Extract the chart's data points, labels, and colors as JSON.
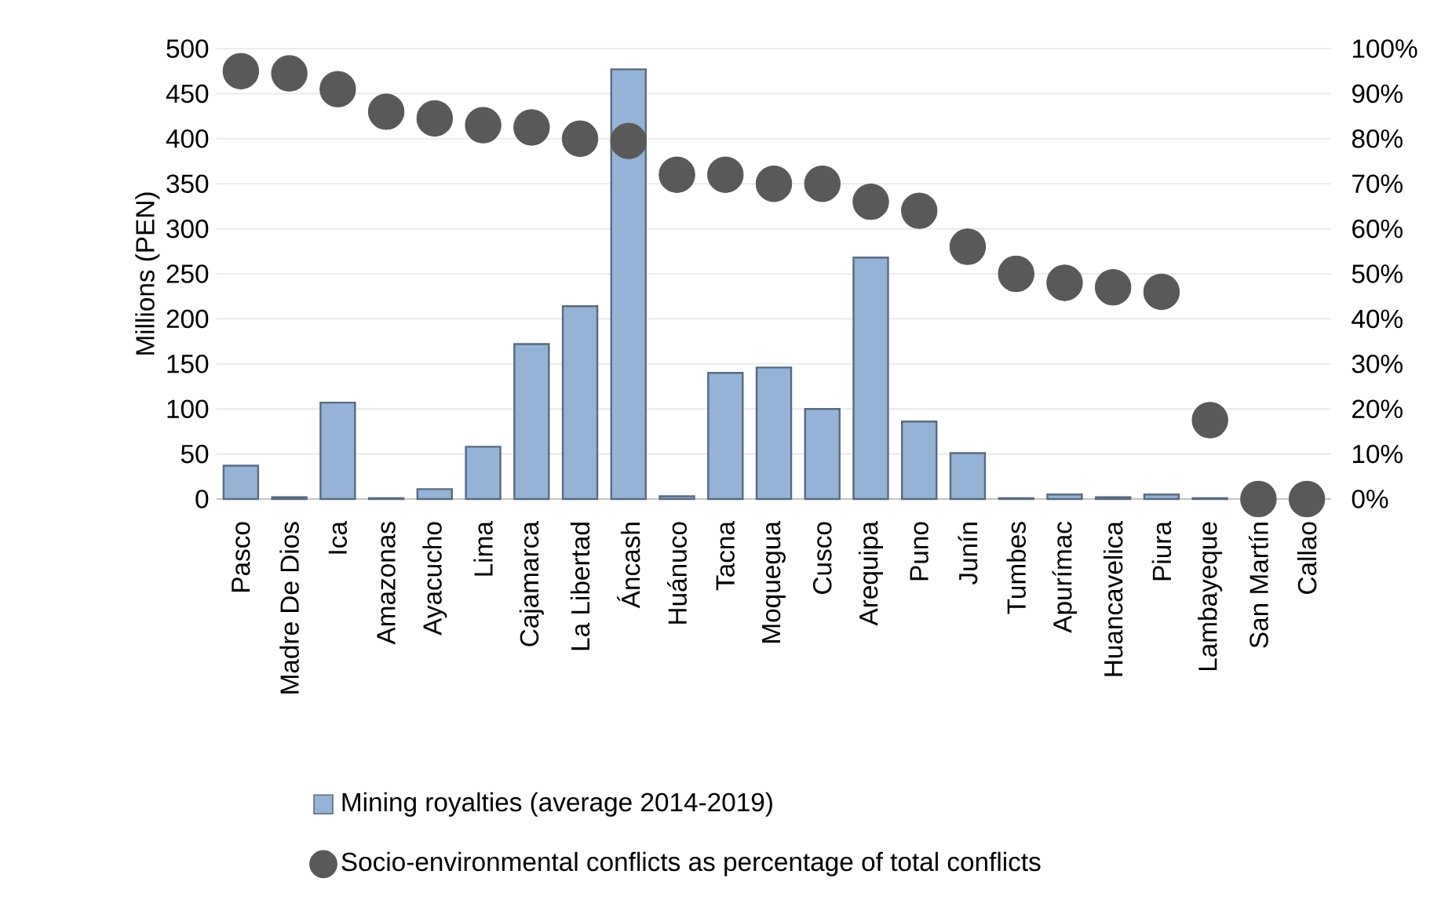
{
  "chart_data": {
    "type": "bar",
    "ylabel": "Millions (PEN)",
    "categories": [
      "Pasco",
      "Madre De Dios",
      "Ica",
      "Amazonas",
      "Ayacucho",
      "Lima",
      "Cajamarca",
      "La Libertad",
      "Áncash",
      "Huánuco",
      "Tacna",
      "Moquegua",
      "Cusco",
      "Arequipa",
      "Puno",
      "Junín",
      "Tumbes",
      "Apurímac",
      "Huancavelica",
      "Piura",
      "Lambayeque",
      "San Martín",
      "Callao"
    ],
    "series": [
      {
        "name": "Mining royalties (average 2014-2019)",
        "color": "#95b3d7",
        "values": [
          37,
          2,
          107,
          1,
          11,
          58,
          172,
          214,
          477,
          3,
          140,
          146,
          100,
          268,
          86,
          51,
          1,
          5,
          2,
          5,
          1,
          null,
          null
        ]
      },
      {
        "name": "Socio-environmental conflicts as percentage of total conflicts",
        "type": "scatter",
        "axis": "y2",
        "color": "#595959",
        "values": [
          95,
          94.5,
          91,
          86,
          84.5,
          83,
          82.5,
          80,
          79.5,
          72,
          72,
          70,
          70,
          66,
          64,
          56,
          50,
          48,
          47,
          46,
          17.5,
          0,
          0
        ]
      }
    ],
    "ylim": [
      0,
      500
    ],
    "yticks": [
      0,
      50,
      100,
      150,
      200,
      250,
      300,
      350,
      400,
      450,
      500
    ],
    "y2lim": [
      0,
      100
    ],
    "y2ticks": [
      {
        "value": 0,
        "label": "0%"
      },
      {
        "value": 10,
        "label": "10%"
      },
      {
        "value": 20,
        "label": "20%"
      },
      {
        "value": 30,
        "label": "30%"
      },
      {
        "value": 40,
        "label": "40%"
      },
      {
        "value": 50,
        "label": "50%"
      },
      {
        "value": 60,
        "label": "60%"
      },
      {
        "value": 70,
        "label": "70%"
      },
      {
        "value": 80,
        "label": "80%"
      },
      {
        "value": 90,
        "label": "90%"
      },
      {
        "value": 100,
        "label": "100%"
      }
    ],
    "grid": "y",
    "legend": "bottom",
    "marker": "circle"
  }
}
